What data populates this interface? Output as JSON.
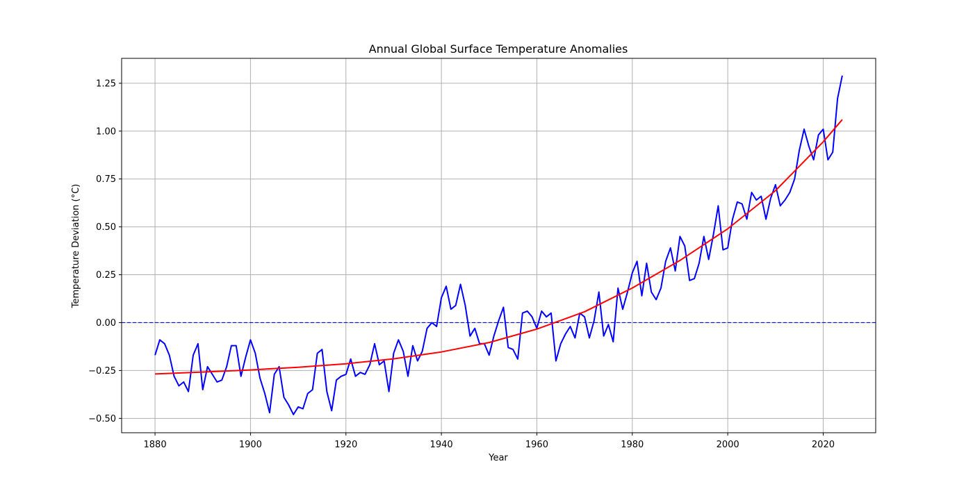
{
  "chart_data": {
    "type": "line",
    "title": "Annual Global Surface Temperature Anomalies",
    "xlabel": "Year",
    "ylabel": "Temperature Deviation (°C)",
    "xlim": [
      1873,
      2031
    ],
    "ylim": [
      -0.575,
      1.38
    ],
    "x_ticks": [
      1880,
      1900,
      1920,
      1940,
      1960,
      1980,
      2000,
      2020
    ],
    "y_ticks": [
      -0.5,
      -0.25,
      0.0,
      0.25,
      0.5,
      0.75,
      1.0,
      1.25
    ],
    "y_tick_labels": [
      "−0.50",
      "−0.25",
      "0.00",
      "0.25",
      "0.50",
      "0.75",
      "1.00",
      "1.25"
    ],
    "grid": true,
    "reference_line": {
      "y": 0.0,
      "style": "dashed",
      "color": "#0000ff"
    },
    "series": [
      {
        "color": "#0000ff",
        "x": [
          1880,
          1881,
          1882,
          1883,
          1884,
          1885,
          1886,
          1887,
          1888,
          1889,
          1890,
          1891,
          1892,
          1893,
          1894,
          1895,
          1896,
          1897,
          1898,
          1899,
          1900,
          1901,
          1902,
          1903,
          1904,
          1905,
          1906,
          1907,
          1908,
          1909,
          1910,
          1911,
          1912,
          1913,
          1914,
          1915,
          1916,
          1917,
          1918,
          1919,
          1920,
          1921,
          1922,
          1923,
          1924,
          1925,
          1926,
          1927,
          1928,
          1929,
          1930,
          1931,
          1932,
          1933,
          1934,
          1935,
          1936,
          1937,
          1938,
          1939,
          1940,
          1941,
          1942,
          1943,
          1944,
          1945,
          1946,
          1947,
          1948,
          1949,
          1950,
          1951,
          1952,
          1953,
          1954,
          1955,
          1956,
          1957,
          1958,
          1959,
          1960,
          1961,
          1962,
          1963,
          1964,
          1965,
          1966,
          1967,
          1968,
          1969,
          1970,
          1971,
          1972,
          1973,
          1974,
          1975,
          1976,
          1977,
          1978,
          1979,
          1980,
          1981,
          1982,
          1983,
          1984,
          1985,
          1986,
          1987,
          1988,
          1989,
          1990,
          1991,
          1992,
          1993,
          1994,
          1995,
          1996,
          1997,
          1998,
          1999,
          2000,
          2001,
          2002,
          2003,
          2004,
          2005,
          2006,
          2007,
          2008,
          2009,
          2010,
          2011,
          2012,
          2013,
          2014,
          2015,
          2016,
          2017,
          2018,
          2019,
          2020,
          2021,
          2022,
          2023,
          2024
        ],
        "values": [
          -0.17,
          -0.09,
          -0.11,
          -0.17,
          -0.28,
          -0.33,
          -0.31,
          -0.36,
          -0.17,
          -0.11,
          -0.35,
          -0.23,
          -0.27,
          -0.31,
          -0.3,
          -0.23,
          -0.12,
          -0.12,
          -0.28,
          -0.18,
          -0.09,
          -0.16,
          -0.29,
          -0.37,
          -0.47,
          -0.27,
          -0.23,
          -0.39,
          -0.43,
          -0.48,
          -0.44,
          -0.45,
          -0.37,
          -0.35,
          -0.16,
          -0.14,
          -0.36,
          -0.46,
          -0.3,
          -0.28,
          -0.27,
          -0.19,
          -0.28,
          -0.26,
          -0.27,
          -0.22,
          -0.11,
          -0.22,
          -0.2,
          -0.36,
          -0.16,
          -0.09,
          -0.15,
          -0.28,
          -0.12,
          -0.2,
          -0.15,
          -0.03,
          0.0,
          -0.02,
          0.13,
          0.19,
          0.07,
          0.09,
          0.2,
          0.09,
          -0.07,
          -0.03,
          -0.11,
          -0.11,
          -0.17,
          -0.07,
          0.01,
          0.08,
          -0.13,
          -0.14,
          -0.19,
          0.05,
          0.06,
          0.03,
          -0.03,
          0.06,
          0.03,
          0.05,
          -0.2,
          -0.11,
          -0.06,
          -0.02,
          -0.08,
          0.05,
          0.03,
          -0.08,
          0.01,
          0.16,
          -0.07,
          -0.01,
          -0.1,
          0.18,
          0.07,
          0.16,
          0.26,
          0.32,
          0.14,
          0.31,
          0.16,
          0.12,
          0.18,
          0.32,
          0.39,
          0.27,
          0.45,
          0.4,
          0.22,
          0.23,
          0.31,
          0.45,
          0.33,
          0.46,
          0.61,
          0.38,
          0.39,
          0.54,
          0.63,
          0.62,
          0.54,
          0.68,
          0.64,
          0.66,
          0.54,
          0.65,
          0.72,
          0.61,
          0.64,
          0.68,
          0.75,
          0.9,
          1.01,
          0.92,
          0.85,
          0.98,
          1.01,
          0.85,
          0.89,
          1.17,
          1.29
        ]
      },
      {
        "color": "#ff0000",
        "x": [
          1880,
          1890,
          1900,
          1910,
          1920,
          1930,
          1940,
          1950,
          1960,
          1970,
          1980,
          1990,
          2000,
          2010,
          2020,
          2024
        ],
        "values": [
          -0.268,
          -0.258,
          -0.247,
          -0.233,
          -0.215,
          -0.189,
          -0.153,
          -0.104,
          -0.034,
          0.057,
          0.181,
          0.325,
          0.49,
          0.689,
          0.944,
          1.06
        ]
      }
    ]
  }
}
